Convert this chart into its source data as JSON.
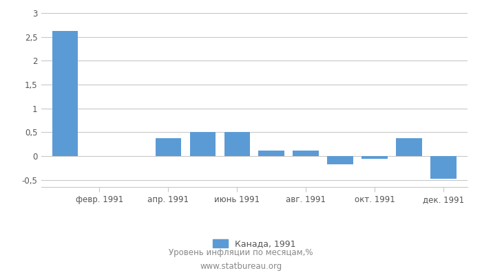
{
  "x_tick_labels": [
    "февр. 1991",
    "апр. 1991",
    "июнь 1991",
    "авг. 1991",
    "окт. 1991",
    "дек. 1991"
  ],
  "values_by_month": {
    "1": 2.63,
    "2": 0.0,
    "3": 0.0,
    "4": 0.37,
    "5": 0.5,
    "6": 0.5,
    "7": 0.12,
    "8": 0.12,
    "9": -0.18,
    "10": -0.06,
    "11": 0.37,
    "12": -0.47
  },
  "bar_color": "#5b9bd5",
  "ylim": [
    -0.65,
    3.1
  ],
  "yticks": [
    -0.5,
    0.0,
    0.5,
    1.0,
    1.5,
    2.0,
    2.5,
    3.0
  ],
  "legend_label": "Канада, 1991",
  "footer_line1": "Уровень инфляции по месяцам,%",
  "footer_line2": "www.statbureau.org",
  "background_color": "#ffffff",
  "grid_color": "#c8c8c8"
}
